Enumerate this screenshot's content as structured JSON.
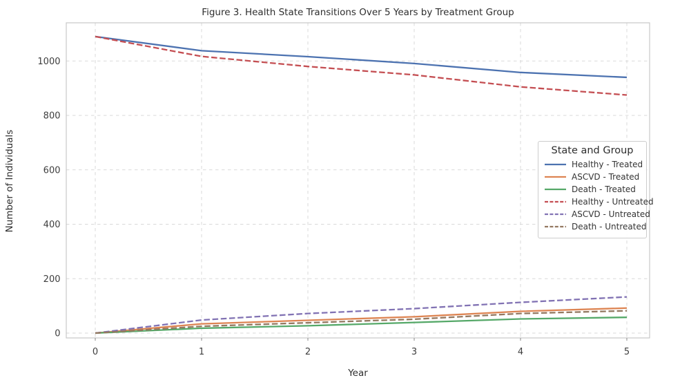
{
  "chart_data": {
    "type": "line",
    "title": "Figure 3. Health State Transitions Over 5 Years by Treatment Group",
    "xlabel": "Year",
    "ylabel": "Number of Individuals",
    "legend_title": "State and Group",
    "legend_position": "center right",
    "grid": true,
    "grid_style": "dashed",
    "x": [
      0,
      1,
      2,
      3,
      4,
      5
    ],
    "xticks": [
      0,
      1,
      2,
      3,
      4,
      5
    ],
    "yticks": [
      0,
      200,
      400,
      600,
      800,
      1000
    ],
    "xlim": [
      -0.27,
      5.21
    ],
    "ylim": [
      -18,
      1140
    ],
    "series": [
      {
        "name": "Healthy - Treated",
        "color": "#4C72B0",
        "style": "solid",
        "values": [
          1090,
          1038,
          1016,
          991,
          958,
          940
        ]
      },
      {
        "name": "ASCVD - Treated",
        "color": "#DD8452",
        "style": "solid",
        "values": [
          0,
          34,
          47,
          60,
          80,
          92
        ]
      },
      {
        "name": "Death - Treated",
        "color": "#55A868",
        "style": "solid",
        "values": [
          0,
          18,
          27,
          39,
          52,
          58
        ]
      },
      {
        "name": "Healthy - Untreated",
        "color": "#C44E52",
        "style": "dashed",
        "values": [
          1090,
          1017,
          980,
          949,
          905,
          875
        ]
      },
      {
        "name": "ASCVD - Untreated",
        "color": "#8172B3",
        "style": "dashed",
        "values": [
          0,
          48,
          72,
          90,
          113,
          133
        ]
      },
      {
        "name": "Death - Untreated",
        "color": "#937860",
        "style": "dashed",
        "values": [
          0,
          25,
          38,
          51,
          72,
          82
        ]
      }
    ]
  },
  "style": {
    "grid_color": "#d9d9d9",
    "spine_color": "#c8c8c8",
    "tick_mark_color": "#8a8a8a",
    "tick_label_color": "#3d3d3d",
    "background": "#ffffff"
  }
}
